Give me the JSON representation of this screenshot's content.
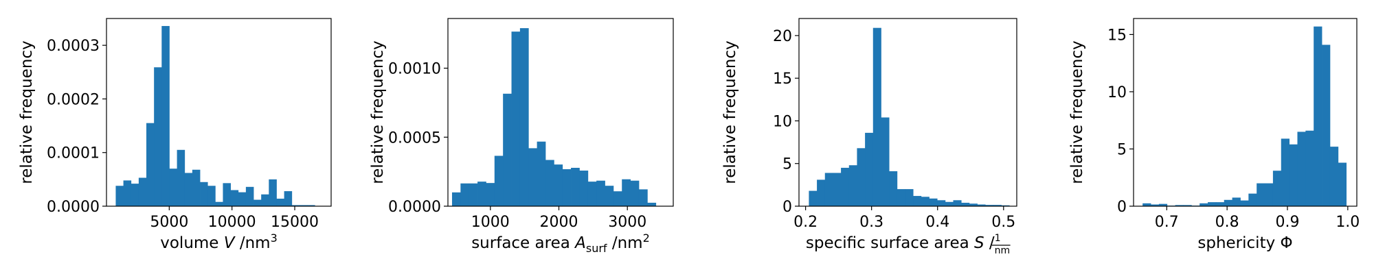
{
  "chart_data": [
    {
      "type": "bar",
      "xlabel_parts": [
        {
          "t": "volume "
        },
        {
          "t": "V",
          "style": "italic"
        },
        {
          "t": " /nm"
        },
        {
          "t": "3",
          "style": "sup"
        }
      ],
      "ylabel": "relative frequency",
      "xlim": [
        0,
        17900
      ],
      "ylim": [
        0,
        0.00035
      ],
      "xticks": [
        5000,
        10000,
        15000
      ],
      "xtick_labels": [
        "5000",
        "10000",
        "15000"
      ],
      "yticks": [
        0,
        0.0001,
        0.0002,
        0.0003
      ],
      "ytick_labels": [
        "0.0000",
        "0.0001",
        "0.0002",
        "0.0003"
      ],
      "bins": {
        "start": 736,
        "width": 610,
        "values": [
          3.8e-05,
          4.8e-05,
          4.2e-05,
          5.3e-05,
          0.000155,
          0.000259,
          0.000336,
          7e-05,
          0.000105,
          6.2e-05,
          6.8e-05,
          4.5e-05,
          3.8e-05,
          8e-06,
          4.3e-05,
          3e-05,
          2.6e-05,
          3.6e-05,
          1.2e-05,
          2.2e-05,
          5e-05,
          1.4e-05,
          2.8e-05,
          2e-06,
          2e-06,
          2e-06
        ]
      }
    },
    {
      "type": "bar",
      "xlabel_parts": [
        {
          "t": "surface area "
        },
        {
          "t": "A",
          "style": "italic"
        },
        {
          "t": "surf",
          "style": "sub"
        },
        {
          "t": " /nm"
        },
        {
          "t": "2",
          "style": "sup"
        }
      ],
      "ylabel": "relative frequency",
      "xlim": [
        380,
        3670
      ],
      "ylim": [
        0,
        0.00136
      ],
      "xticks": [
        1000,
        2000,
        3000
      ],
      "xtick_labels": [
        "1000",
        "2000",
        "3000"
      ],
      "yticks": [
        0,
        0.0005,
        0.001
      ],
      "ytick_labels": [
        "0.0000",
        "0.0005",
        "0.0010"
      ],
      "bins": {
        "start": 440,
        "width": 124,
        "values": [
          0.0001,
          0.000165,
          0.000165,
          0.000178,
          0.000168,
          0.000365,
          0.000815,
          0.001265,
          0.00129,
          0.00042,
          0.000468,
          0.000335,
          0.000302,
          0.000268,
          0.000278,
          0.000258,
          0.000178,
          0.000185,
          0.000148,
          0.000108,
          0.000195,
          0.000185,
          0.000122,
          2.5e-05
        ]
      }
    },
    {
      "type": "bar",
      "xlabel_parts": [
        {
          "t": "specific surface area "
        },
        {
          "t": "S",
          "style": "italic"
        },
        {
          "t": " /"
        },
        {
          "t": "1",
          "frac": "num"
        },
        {
          "t": "nm",
          "frac": "den"
        }
      ],
      "ylabel": "relative frequency",
      "xlim": [
        0.19,
        0.52
      ],
      "ylim": [
        0,
        22
      ],
      "xticks": [
        0.2,
        0.3,
        0.4,
        0.5
      ],
      "xtick_labels": [
        "0.2",
        "0.3",
        "0.4",
        "0.5"
      ],
      "yticks": [
        0,
        5,
        10,
        15,
        20
      ],
      "ytick_labels": [
        "0",
        "5",
        "10",
        "15",
        "20"
      ],
      "bins": {
        "start": 0.205,
        "width": 0.01215,
        "values": [
          1.8,
          3.1,
          3.9,
          3.9,
          4.5,
          4.8,
          6.8,
          8.6,
          20.9,
          10.4,
          4.1,
          2.0,
          2.0,
          1.2,
          1.1,
          0.9,
          0.7,
          0.5,
          0.7,
          0.4,
          0.3,
          0.2,
          0.15,
          0.15,
          0.1
        ]
      }
    },
    {
      "type": "bar",
      "xlabel_parts": [
        {
          "t": "sphericity Φ"
        }
      ],
      "ylabel": "relative frequency",
      "xlim": [
        0.645,
        1.015
      ],
      "ylim": [
        0,
        16.4
      ],
      "xticks": [
        0.7,
        0.8,
        0.9,
        1.0
      ],
      "xtick_labels": [
        "0.7",
        "0.8",
        "0.9",
        "1.0"
      ],
      "yticks": [
        0,
        5,
        10,
        15
      ],
      "ytick_labels": [
        "0",
        "5",
        "10",
        "15"
      ],
      "bins": {
        "start": 0.66,
        "width": 0.0135,
        "values": [
          0.25,
          0.15,
          0.2,
          0.05,
          0.1,
          0.1,
          0.05,
          0.25,
          0.35,
          0.35,
          0.55,
          0.75,
          0.5,
          1.1,
          2.0,
          2.0,
          3.1,
          5.9,
          5.4,
          6.5,
          6.6,
          15.7,
          14.1,
          5.2,
          3.8
        ]
      }
    }
  ]
}
